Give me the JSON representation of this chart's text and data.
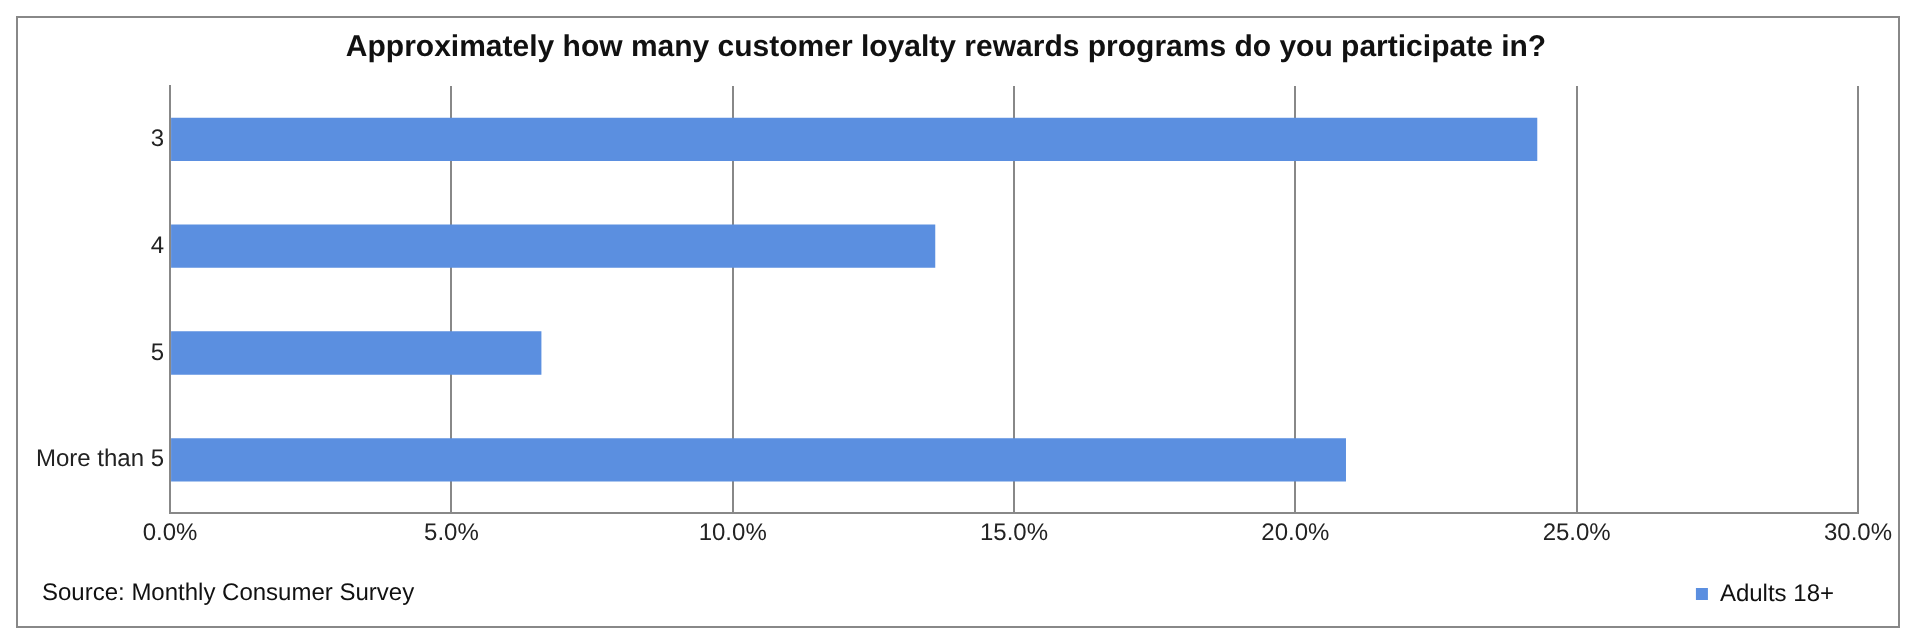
{
  "chart_data": {
    "type": "bar",
    "orientation": "horizontal",
    "title": "Approximately how many customer loyalty rewards programs do you participate in?",
    "categories": [
      "3",
      "4",
      "5",
      "More than 5"
    ],
    "series": [
      {
        "name": "Adults 18+",
        "color": "#5b8fe0",
        "values": [
          24.3,
          13.6,
          6.6,
          20.9
        ]
      }
    ],
    "xlim": [
      0,
      30
    ],
    "xticks": [
      {
        "value": 0,
        "label": "0.0%"
      },
      {
        "value": 5,
        "label": "5.0%"
      },
      {
        "value": 10,
        "label": "10.0%"
      },
      {
        "value": 15,
        "label": "15.0%"
      },
      {
        "value": 20,
        "label": "20.0%"
      },
      {
        "value": 25,
        "label": "25.0%"
      },
      {
        "value": 30,
        "label": "30.0%"
      }
    ],
    "grid": "x",
    "legend": "bottom right",
    "annotations": [
      "Source: Monthly Consumer Survey"
    ]
  }
}
